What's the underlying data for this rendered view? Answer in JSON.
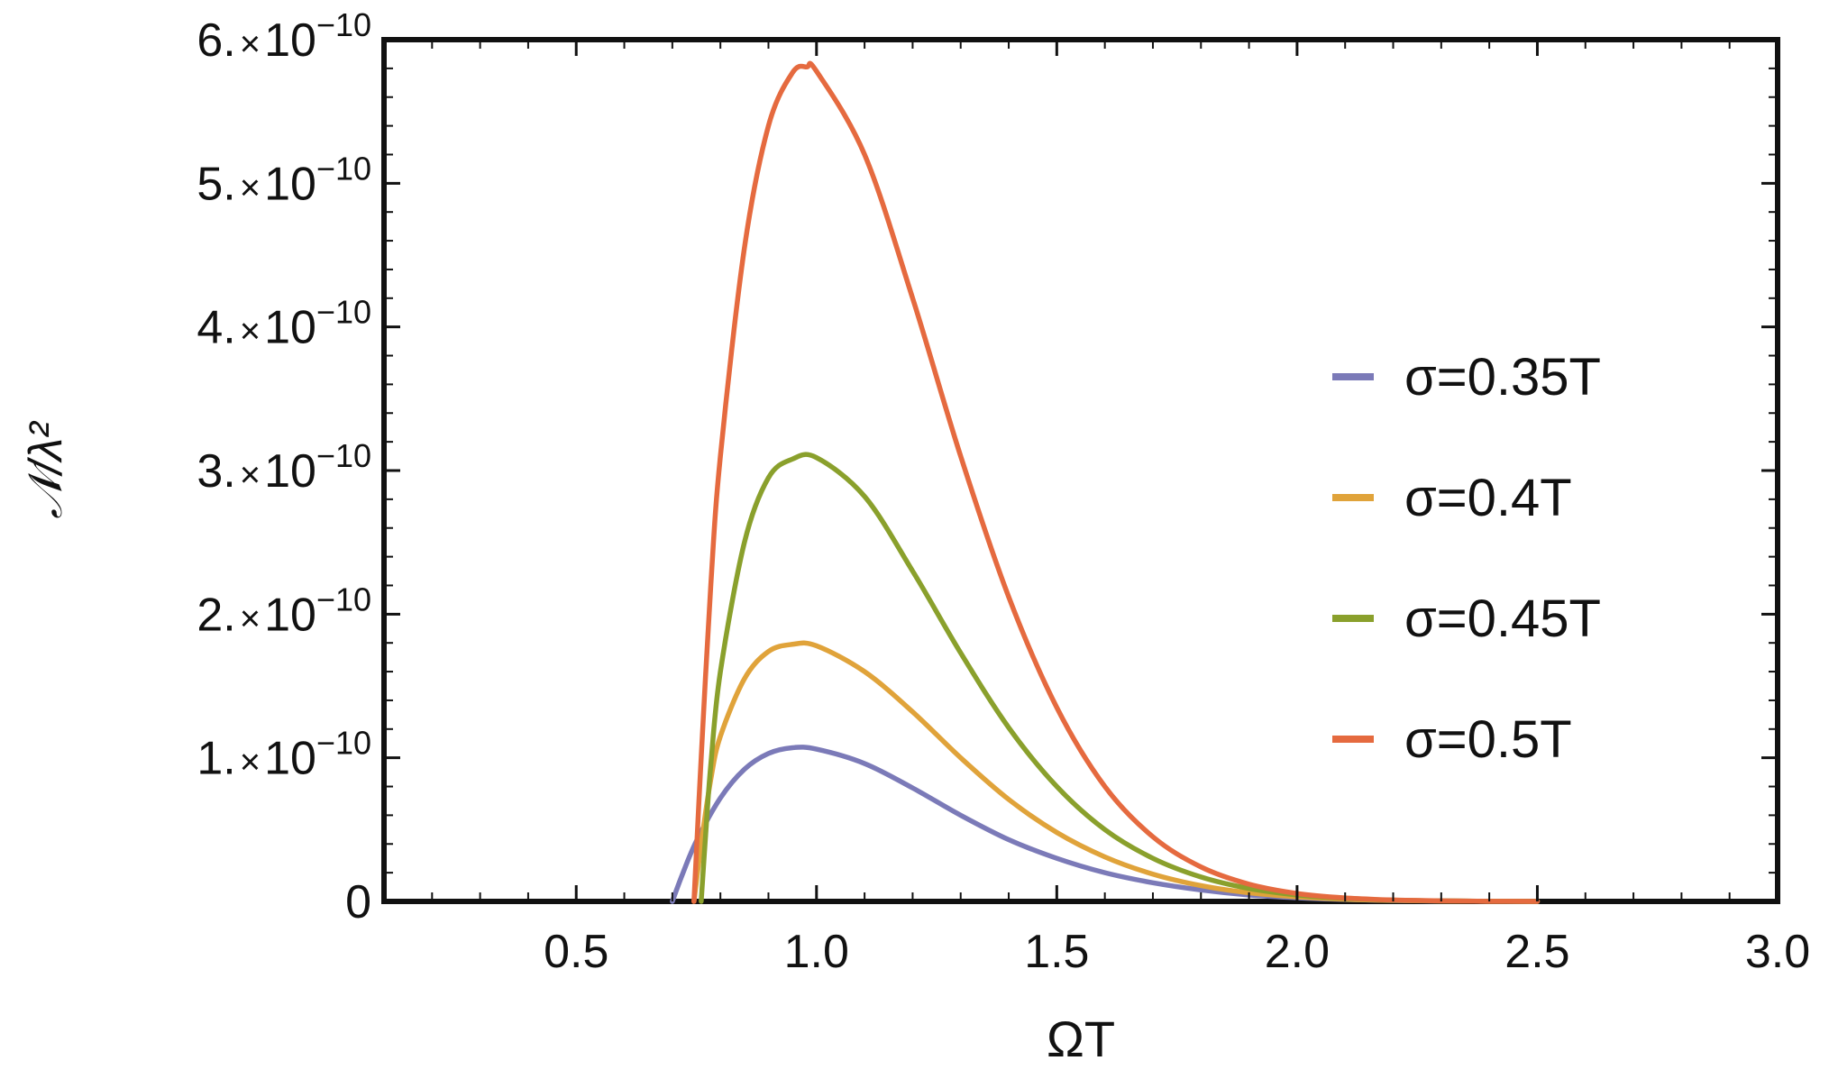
{
  "chart_data": {
    "type": "line",
    "xlabel": "ΩT",
    "ylabel": "𝒩/λ²",
    "xlim": [
      0.1,
      3.0
    ],
    "ylim": [
      0,
      6e-10
    ],
    "x_ticks": [
      {
        "value": 0.5,
        "label": "0.5"
      },
      {
        "value": 1.0,
        "label": "1.0"
      },
      {
        "value": 1.5,
        "label": "1.5"
      },
      {
        "value": 2.0,
        "label": "2.0"
      },
      {
        "value": 2.5,
        "label": "2.5"
      },
      {
        "value": 3.0,
        "label": "3.0"
      }
    ],
    "y_ticks": [
      {
        "value": 0,
        "label": "0",
        "mant": "",
        "exp": ""
      },
      {
        "value": 1e-10,
        "label": "1.×10⁻¹⁰",
        "mant": "1.",
        "exp": "−10"
      },
      {
        "value": 2e-10,
        "label": "2.×10⁻¹⁰",
        "mant": "2.",
        "exp": "−10"
      },
      {
        "value": 3e-10,
        "label": "3.×10⁻¹⁰",
        "mant": "3.",
        "exp": "−10"
      },
      {
        "value": 4e-10,
        "label": "4.×10⁻¹⁰",
        "mant": "4.",
        "exp": "−10"
      },
      {
        "value": 5e-10,
        "label": "5.×10⁻¹⁰",
        "mant": "5.",
        "exp": "−10"
      },
      {
        "value": 6e-10,
        "label": "6.×10⁻¹⁰",
        "mant": "6.",
        "exp": "−10"
      }
    ],
    "legend_position": "right",
    "series": [
      {
        "name": "σ=0.35T",
        "color": "#7b7ab8",
        "x": [
          0.7,
          0.72,
          0.75,
          0.8,
          0.85,
          0.9,
          0.95,
          1.0,
          1.1,
          1.2,
          1.3,
          1.4,
          1.5,
          1.6,
          1.7,
          1.8,
          1.9,
          2.0,
          2.1,
          2.2,
          2.3,
          2.4,
          2.5
        ],
        "y": [
          0,
          1.8e-11,
          4.2e-11,
          7.2e-11,
          9.2e-11,
          1.03e-10,
          1.07e-10,
          1.06e-10,
          9.6e-11,
          7.9e-11,
          6e-11,
          4.3e-11,
          3e-11,
          2e-11,
          1.3e-11,
          8e-12,
          4.5e-12,
          2.5e-12,
          1.3e-12,
          6e-13,
          3e-13,
          1e-13,
          0
        ]
      },
      {
        "name": "σ=0.4T",
        "color": "#e0a33a",
        "x": [
          0.745,
          0.76,
          0.78,
          0.8,
          0.85,
          0.9,
          0.95,
          1.0,
          1.1,
          1.2,
          1.3,
          1.4,
          1.5,
          1.6,
          1.7,
          1.8,
          1.9,
          2.0,
          2.1,
          2.2,
          2.3,
          2.4,
          2.5
        ],
        "y": [
          0,
          4e-11,
          8.5e-11,
          1.15e-10,
          1.55e-10,
          1.74e-10,
          1.79e-10,
          1.78e-10,
          1.6e-10,
          1.32e-10,
          1e-10,
          7.1e-11,
          4.8e-11,
          3.1e-11,
          1.9e-11,
          1.1e-11,
          6e-12,
          3.2e-12,
          1.5e-12,
          7e-13,
          3e-13,
          1e-13,
          0
        ]
      },
      {
        "name": "σ=0.45T",
        "color": "#8aa02c",
        "x": [
          0.76,
          0.77,
          0.78,
          0.8,
          0.85,
          0.9,
          0.95,
          1.0,
          1.1,
          1.2,
          1.3,
          1.4,
          1.5,
          1.6,
          1.7,
          1.8,
          1.9,
          2.0,
          2.1,
          2.2,
          2.3,
          2.4,
          2.5
        ],
        "y": [
          0,
          5e-11,
          9.5e-11,
          1.6e-10,
          2.5e-10,
          2.95e-10,
          3.08e-10,
          3.09e-10,
          2.82e-10,
          2.3e-10,
          1.73e-10,
          1.21e-10,
          8e-11,
          5e-11,
          3e-11,
          1.7e-11,
          9e-12,
          4.5e-12,
          2.1e-12,
          9e-13,
          4e-13,
          1e-13,
          0
        ]
      },
      {
        "name": "σ=0.5T",
        "color": "#e56a3f",
        "x": [
          0.745,
          0.76,
          0.78,
          0.8,
          0.85,
          0.9,
          0.95,
          0.98,
          1.0,
          1.1,
          1.2,
          1.3,
          1.4,
          1.5,
          1.6,
          1.7,
          1.8,
          1.9,
          2.0,
          2.1,
          2.2,
          2.3,
          2.4,
          2.5
        ],
        "y": [
          0,
          1e-10,
          2.2e-10,
          3.1e-10,
          4.55e-10,
          5.4e-10,
          5.77e-10,
          5.81e-10,
          5.78e-10,
          5.2e-10,
          4.2e-10,
          3.1e-10,
          2.12e-10,
          1.35e-10,
          8e-11,
          4.5e-11,
          2.4e-11,
          1.2e-11,
          5.5e-12,
          2.4e-12,
          1e-12,
          4e-13,
          1e-13,
          0
        ]
      }
    ]
  }
}
